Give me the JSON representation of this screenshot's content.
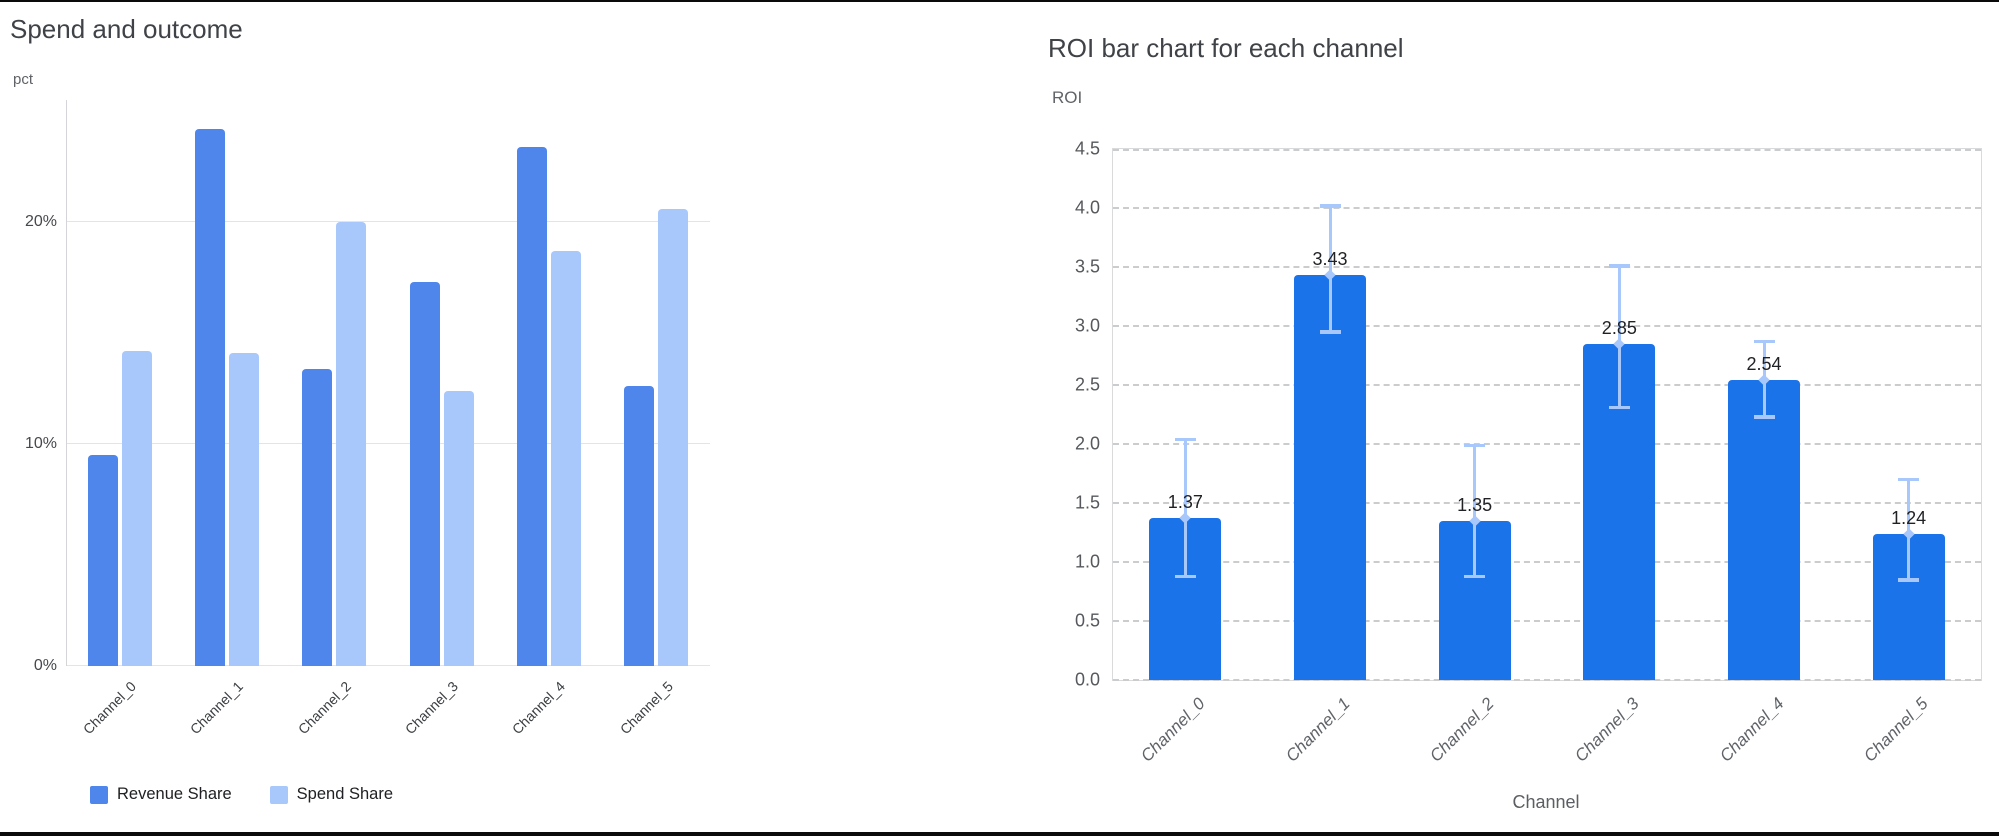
{
  "chart_data": [
    {
      "type": "bar",
      "title": "Spend and outcome",
      "ylabel": "pct",
      "xlabel": "",
      "categories": [
        "Channel_0",
        "Channel_1",
        "Channel_2",
        "Channel_3",
        "Channel_4",
        "Channel_5"
      ],
      "series": [
        {
          "name": "Revenue Share",
          "color": "#4e86ec",
          "values": [
            9.5,
            24.2,
            13.4,
            17.3,
            23.4,
            12.6
          ]
        },
        {
          "name": "Spend Share",
          "color": "#a8c7fa",
          "values": [
            14.2,
            14.1,
            20.0,
            12.4,
            18.7,
            20.6
          ]
        }
      ],
      "yticks": [
        {
          "value": 0,
          "label": "0%"
        },
        {
          "value": 10,
          "label": "10%"
        },
        {
          "value": 20,
          "label": "20%"
        }
      ],
      "ylim": [
        0,
        25.5
      ],
      "grid": "solid",
      "legend_position": "bottom"
    },
    {
      "type": "bar",
      "title": "ROI bar chart for each channel",
      "ylabel": "ROI",
      "xlabel": "Channel",
      "categories": [
        "Channel_0",
        "Channel_1",
        "Channel_2",
        "Channel_3",
        "Channel_4",
        "Channel_5"
      ],
      "values": [
        1.37,
        3.43,
        1.35,
        2.85,
        2.54,
        1.24
      ],
      "value_labels": [
        "1.37",
        "3.43",
        "1.35",
        "2.85",
        "2.54",
        "1.24"
      ],
      "error_low": [
        0.88,
        2.95,
        0.88,
        2.31,
        2.23,
        0.85
      ],
      "error_high": [
        2.04,
        4.02,
        1.99,
        3.51,
        2.87,
        1.7
      ],
      "bar_color": "#1a73e8",
      "error_color": "#a8c7fa",
      "ylim": [
        0,
        4.5
      ],
      "ytick_step": 0.5,
      "grid": "dashed",
      "legend_position": "none"
    }
  ],
  "colors": {
    "title_text": "#3f4347",
    "axis_unit_text": "#5f6368",
    "tick_text": "#55585c",
    "grid_line": "#e2e4e6",
    "frame_rule": "#0a0a0a"
  }
}
